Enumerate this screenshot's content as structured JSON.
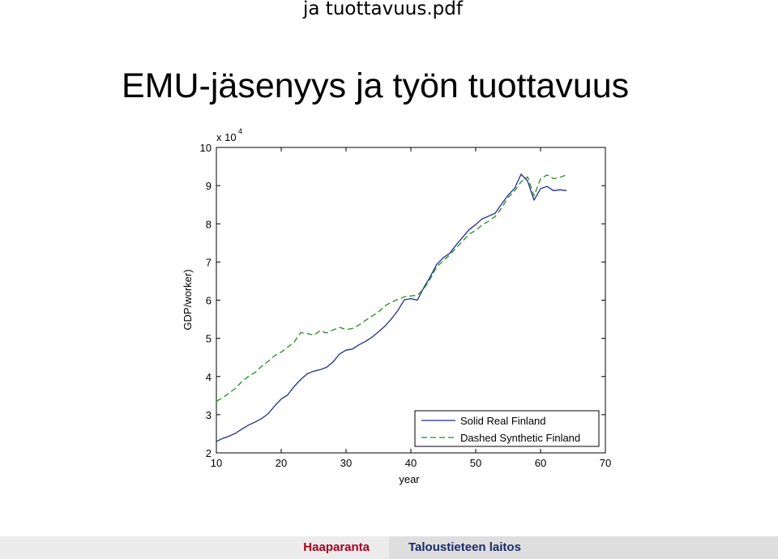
{
  "header": {
    "file_title": "ja tuottavuus.pdf",
    "slide_title": "EMU-jäsenyys ja työn tuottavuus"
  },
  "chart_data": {
    "type": "line",
    "xlabel": "year",
    "ylabel": "GDP/worker)",
    "y_exponent_label": "x 10",
    "y_exponent_power": "4",
    "xlim": [
      10,
      70
    ],
    "ylim": [
      20000,
      100000
    ],
    "x_ticks": [
      10,
      20,
      30,
      40,
      50,
      60,
      70
    ],
    "y_ticks": [
      20000,
      30000,
      40000,
      50000,
      60000,
      70000,
      80000,
      90000,
      100000
    ],
    "y_tick_labels": [
      "2",
      "3",
      "4",
      "5",
      "6",
      "7",
      "8",
      "9",
      "10"
    ],
    "grid": false,
    "legend_position": "bottom-right",
    "series": [
      {
        "name": "Solid Real Finland",
        "style": "solid",
        "color": "#1f2f8f",
        "x": [
          10,
          11,
          12,
          13,
          14,
          15,
          16,
          17,
          18,
          19,
          20,
          21,
          22,
          23,
          24,
          25,
          26,
          27,
          28,
          29,
          30,
          31,
          32,
          33,
          34,
          35,
          36,
          37,
          38,
          39,
          40,
          41,
          42,
          43,
          44,
          45,
          46,
          47,
          48,
          49,
          50,
          51,
          52,
          53,
          54,
          55,
          56,
          57,
          58,
          59,
          60,
          61,
          62,
          63,
          64
        ],
        "y": [
          23000,
          23800,
          24400,
          25200,
          26300,
          27300,
          28100,
          29000,
          30300,
          32300,
          34100,
          35200,
          37400,
          39200,
          40700,
          41400,
          41800,
          42400,
          43800,
          45900,
          46900,
          47200,
          48300,
          49200,
          50300,
          51700,
          53200,
          55100,
          57300,
          60100,
          60400,
          60000,
          63300,
          66200,
          69400,
          71100,
          72300,
          74500,
          76500,
          78500,
          79800,
          81300,
          82000,
          82800,
          85200,
          87500,
          89300,
          93000,
          91200,
          86200,
          89200,
          89800,
          88700,
          88900,
          88700
        ]
      },
      {
        "name": "Dashed Synthetic Finland",
        "style": "dashed",
        "color": "#1e8f1e",
        "x": [
          10,
          11,
          12,
          13,
          14,
          15,
          16,
          17,
          18,
          19,
          20,
          21,
          22,
          23,
          24,
          25,
          26,
          27,
          28,
          29,
          30,
          31,
          32,
          33,
          34,
          35,
          36,
          37,
          38,
          39,
          40,
          41,
          42,
          43,
          44,
          45,
          46,
          47,
          48,
          49,
          50,
          51,
          52,
          53,
          54,
          55,
          56,
          57,
          58,
          59,
          60,
          61,
          62,
          63,
          64
        ],
        "y": [
          33500,
          34500,
          35700,
          37000,
          38800,
          40100,
          41100,
          42700,
          44000,
          45500,
          46400,
          47700,
          49000,
          51500,
          51300,
          50800,
          52000,
          51400,
          52200,
          52900,
          52300,
          52600,
          53500,
          54700,
          55800,
          56900,
          58500,
          59500,
          60200,
          60900,
          61100,
          61300,
          63000,
          65600,
          68800,
          70300,
          71900,
          73700,
          75500,
          77300,
          78300,
          79700,
          80700,
          81900,
          84200,
          86900,
          88600,
          91000,
          92300,
          87300,
          91800,
          92800,
          91800,
          92200,
          92800
        ]
      }
    ]
  },
  "footer": {
    "author": "Haaparanta",
    "department": "Taloustieteen laitos"
  }
}
